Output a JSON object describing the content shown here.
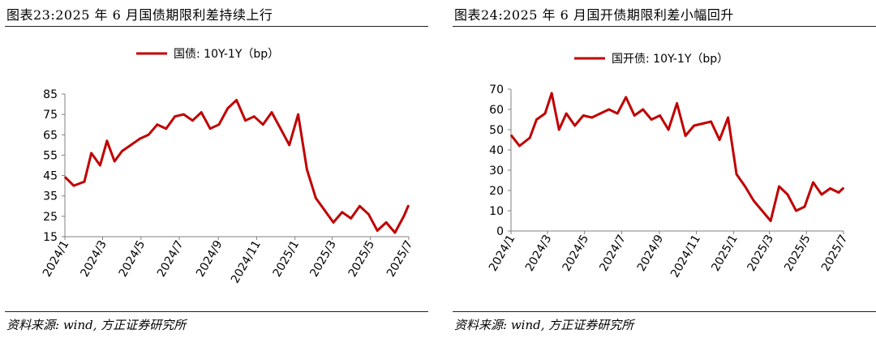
{
  "chart_data": [
    {
      "type": "line",
      "title": "图表23:2025 年 6 月国债期限利差持续上行",
      "source": "资料来源: wind, 方正证券研究所",
      "xlabel": "",
      "ylabel": "",
      "ylim": [
        15,
        85
      ],
      "yticks": [
        "85",
        "75",
        "65",
        "55",
        "45",
        "35",
        "25",
        "15"
      ],
      "xticks": [
        "2024/1",
        "2024/3",
        "2024/5",
        "2024/7",
        "2024/9",
        "2024/11",
        "2025/1",
        "2025/3",
        "2025/5",
        "2025/7"
      ],
      "grid": false,
      "legend_position": "top-center",
      "series": [
        {
          "name": "国债: 10Y-1Y（bp）",
          "color": "#c00000",
          "x": [
            "2024/1/02",
            "2024/1/15",
            "2024/2/01",
            "2024/2/12",
            "2024/2/26",
            "2024/3/08",
            "2024/3/20",
            "2024/4/01",
            "2024/4/15",
            "2024/4/29",
            "2024/5/13",
            "2024/5/27",
            "2024/6/10",
            "2024/6/24",
            "2024/7/08",
            "2024/7/22",
            "2024/8/05",
            "2024/8/19",
            "2024/9/02",
            "2024/9/16",
            "2024/9/30",
            "2024/10/14",
            "2024/10/28",
            "2024/11/11",
            "2024/11/25",
            "2024/12/09",
            "2024/12/23",
            "2025/1/06",
            "2025/1/20",
            "2025/2/03",
            "2025/2/17",
            "2025/3/03",
            "2025/3/17",
            "2025/3/31",
            "2025/4/14",
            "2025/4/28",
            "2025/5/12",
            "2025/5/26",
            "2025/6/09",
            "2025/6/23",
            "2025/6/30"
          ],
          "values": [
            44,
            40,
            42,
            56,
            50,
            62,
            52,
            57,
            60,
            63,
            65,
            70,
            68,
            74,
            75,
            72,
            76,
            68,
            70,
            78,
            82,
            72,
            74,
            70,
            76,
            68,
            60,
            75,
            48,
            34,
            28,
            22,
            27,
            24,
            30,
            26,
            18,
            22,
            17,
            25,
            30
          ]
        }
      ]
    },
    {
      "type": "line",
      "title": "图表24:2025 年 6 月国开债期限利差小幅回升",
      "source": "资料来源: wind, 方正证券研究所",
      "xlabel": "",
      "ylabel": "",
      "ylim": [
        0,
        70
      ],
      "yticks": [
        "70",
        "60",
        "50",
        "40",
        "30",
        "20",
        "10",
        "0"
      ],
      "xticks": [
        "2024/1",
        "2024/3",
        "2024/5",
        "2024/7",
        "2024/9",
        "2024/11",
        "2025/1",
        "2025/3",
        "2025/5",
        "2025/7"
      ],
      "grid": false,
      "legend_position": "top-center",
      "series": [
        {
          "name": "国开债: 10Y-1Y（bp）",
          "color": "#c00000",
          "x": [
            "2024/1/02",
            "2024/1/15",
            "2024/2/01",
            "2024/2/12",
            "2024/2/26",
            "2024/3/08",
            "2024/3/20",
            "2024/4/01",
            "2024/4/15",
            "2024/4/29",
            "2024/5/13",
            "2024/5/27",
            "2024/6/10",
            "2024/6/24",
            "2024/7/08",
            "2024/7/22",
            "2024/8/05",
            "2024/8/19",
            "2024/9/02",
            "2024/9/16",
            "2024/9/30",
            "2024/10/14",
            "2024/10/28",
            "2024/11/11",
            "2024/11/25",
            "2024/12/09",
            "2024/12/23",
            "2025/1/06",
            "2025/1/20",
            "2025/2/03",
            "2025/2/17",
            "2025/3/03",
            "2025/3/17",
            "2025/3/31",
            "2025/4/14",
            "2025/4/28",
            "2025/5/12",
            "2025/5/26",
            "2025/6/09",
            "2025/6/23",
            "2025/6/30"
          ],
          "values": [
            47,
            42,
            46,
            55,
            58,
            68,
            50,
            58,
            52,
            57,
            56,
            58,
            60,
            58,
            66,
            57,
            60,
            55,
            57,
            50,
            63,
            47,
            52,
            53,
            54,
            45,
            56,
            28,
            22,
            15,
            10,
            5,
            22,
            18,
            10,
            12,
            24,
            18,
            21,
            19,
            21
          ]
        }
      ]
    }
  ]
}
